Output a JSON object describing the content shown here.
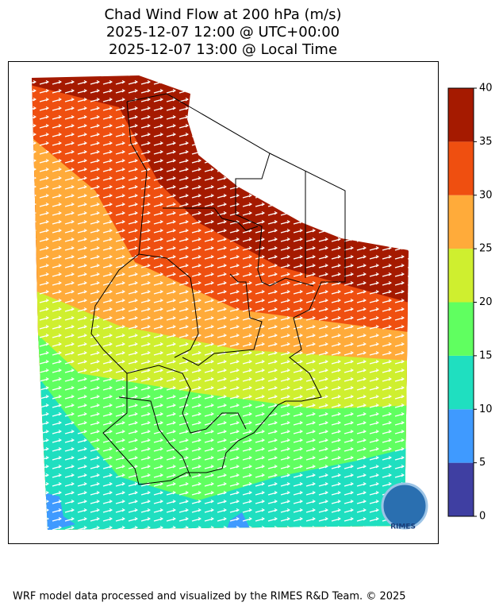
{
  "title": [
    "Chad Wind Flow at 200 hPa (m/s)",
    "2025-12-07 12:00 @ UTC+00:00",
    "2025-12-07 13:00 @ Local Time"
  ],
  "colorbar": {
    "ticks": [
      0,
      5,
      10,
      15,
      20,
      25,
      30,
      35,
      40
    ],
    "colors": [
      "#3f3fa2",
      "#3f9aff",
      "#1fdfc0",
      "#60ff60",
      "#cfef2f",
      "#ffab3a",
      "#ef4f10",
      "#a51a00"
    ]
  },
  "logo": "RIMES",
  "footer": "WRF model data processed and visualized by the RIMES R&D Team. © 2025"
}
